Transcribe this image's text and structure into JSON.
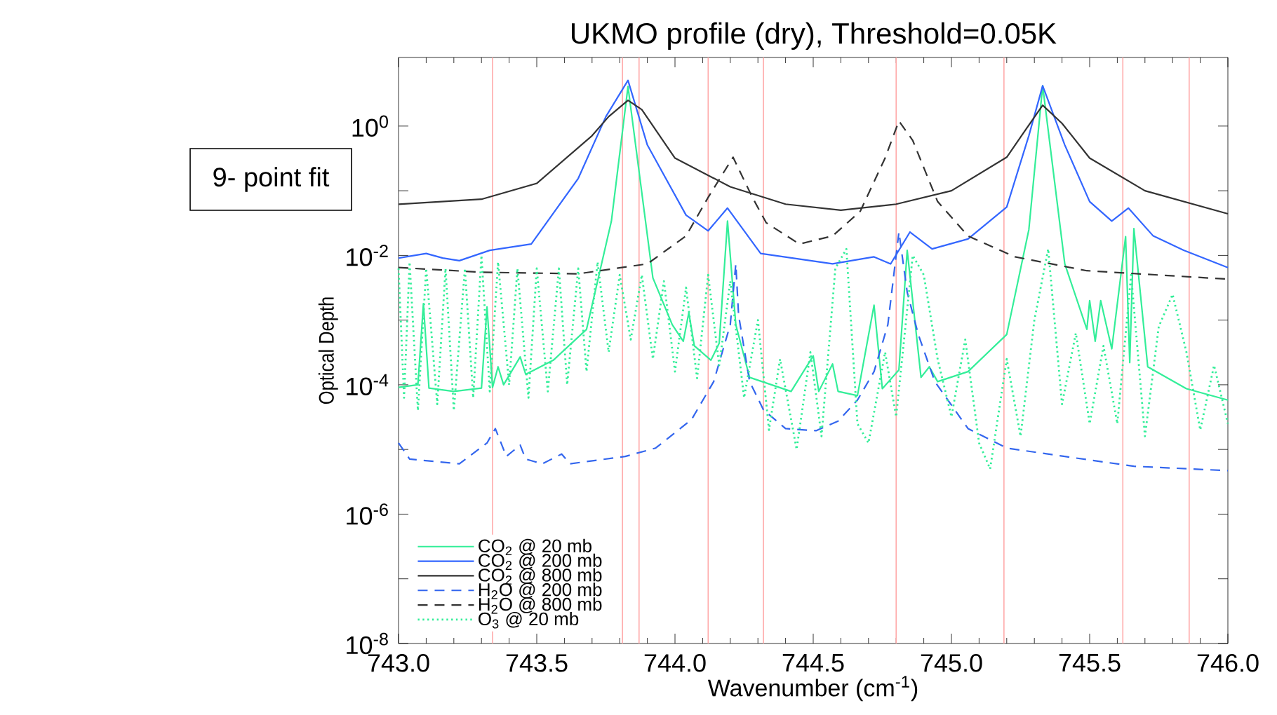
{
  "chart_data": {
    "type": "line",
    "title": "UKMO profile (dry), Threshold=0.05K",
    "xlabel": "Wavenumber (cm$^{-1}$)",
    "ylabel": "Optical Depth",
    "log": "y",
    "legend": "bottom left",
    "annotations": [
      "9- point fit"
    ],
    "xlim": [
      743.0,
      746.0
    ],
    "ylim": [
      1e-08,
      11.5
    ],
    "xticks": [
      {
        "value": 743.0,
        "label": "743.0"
      },
      {
        "value": 743.5,
        "label": "743.5"
      },
      {
        "value": 744.0,
        "label": "744.0"
      },
      {
        "value": 744.5,
        "label": "744.5"
      },
      {
        "value": 745.0,
        "label": "745.0"
      },
      {
        "value": 745.5,
        "label": "745.5"
      },
      {
        "value": 746.0,
        "label": "746.0"
      }
    ],
    "yticks": [
      {
        "value": 1e-08,
        "label": "10$^{-8}$"
      },
      {
        "value": 1e-07,
        "label": null
      },
      {
        "value": 1e-06,
        "label": "10$^{-6}$"
      },
      {
        "value": 1e-05,
        "label": null
      },
      {
        "value": 0.0001,
        "label": "10$^{-4}$"
      },
      {
        "value": 0.001,
        "label": null
      },
      {
        "value": 0.01,
        "label": "10$^{-2}$"
      },
      {
        "value": 0.1,
        "label": null
      },
      {
        "value": 1,
        "label": "10$^{0}$"
      }
    ],
    "ref_lines": [
      {
        "axis": "x",
        "value": 743.34,
        "color": "#ffaaaa"
      },
      {
        "axis": "x",
        "value": 743.81,
        "color": "#ffaaaa"
      },
      {
        "axis": "x",
        "value": 743.87,
        "color": "#ffaaaa"
      },
      {
        "axis": "x",
        "value": 744.12,
        "color": "#ffaaaa"
      },
      {
        "axis": "x",
        "value": 744.32,
        "color": "#ffaaaa"
      },
      {
        "axis": "x",
        "value": 744.8,
        "color": "#ffaaaa"
      },
      {
        "axis": "x",
        "value": 745.19,
        "color": "#ffaaaa"
      },
      {
        "axis": "x",
        "value": 745.62,
        "color": "#ffaaaa"
      },
      {
        "axis": "x",
        "value": 745.86,
        "color": "#ffaaaa"
      }
    ],
    "series": [
      {
        "name": "CO$_{2}$ @  20 mb",
        "color": "#33ee99",
        "line_style": "solid",
        "x": [
          743.0,
          743.07,
          743.09,
          743.11,
          743.2,
          743.3,
          743.32,
          743.34,
          743.36,
          743.38,
          743.44,
          743.46,
          743.56,
          743.68,
          743.77,
          743.83,
          743.92,
          743.99,
          744.03,
          744.05,
          744.07,
          744.13,
          744.16,
          744.19,
          744.22,
          744.27,
          744.42,
          744.5,
          744.52,
          744.57,
          744.59,
          744.66,
          744.72,
          744.75,
          744.81,
          744.84,
          744.89,
          744.92,
          744.95,
          745.06,
          745.2,
          745.28,
          745.33,
          745.41,
          745.49,
          745.5,
          745.52,
          745.54,
          745.58,
          745.63,
          745.645,
          745.66,
          745.71,
          745.85,
          746.0
        ],
        "values": [
          9.1e-05,
          0.0001,
          0.0018,
          8.9e-05,
          7.9e-05,
          8.9e-05,
          0.0016,
          9.1e-05,
          0.00019,
          0.0001,
          0.00027,
          0.000145,
          0.00024,
          0.00072,
          0.034,
          4.1,
          0.0045,
          0.00085,
          0.00047,
          0.0013,
          0.0004,
          0.00024,
          0.00044,
          0.034,
          0.00085,
          0.00013,
          7.9e-05,
          0.00028,
          7.9e-05,
          0.00021,
          7.9e-05,
          6.8e-05,
          0.0017,
          8.7e-05,
          0.00017,
          0.012,
          0.00013,
          0.00019,
          0.000112,
          0.00016,
          0.0006,
          0.025,
          4.2,
          0.0074,
          0.00072,
          0.002,
          0.00047,
          0.002,
          0.00036,
          0.0195,
          0.00022,
          0.026,
          0.00019,
          8.7e-05,
          5.8e-05
        ]
      },
      {
        "name": "CO$_{2}$ @ 200 mb",
        "color": "#3366ff",
        "line_style": "solid",
        "x": [
          743.0,
          743.1,
          743.16,
          743.22,
          743.33,
          743.48,
          743.65,
          743.75,
          743.83,
          743.9,
          744.04,
          744.12,
          744.19,
          744.31,
          744.57,
          744.72,
          744.78,
          744.85,
          744.93,
          745.06,
          745.2,
          745.28,
          745.33,
          745.41,
          745.5,
          745.58,
          745.64,
          745.73,
          745.84,
          746.0
        ],
        "values": [
          0.0091,
          0.0107,
          0.0091,
          0.0083,
          0.012,
          0.015,
          0.155,
          1.4,
          5.1,
          0.51,
          0.042,
          0.024,
          0.054,
          0.0107,
          0.0074,
          0.0095,
          0.0074,
          0.023,
          0.0126,
          0.018,
          0.056,
          0.71,
          4.2,
          0.51,
          0.068,
          0.034,
          0.054,
          0.02,
          0.012,
          0.0065
        ]
      },
      {
        "name": "CO$_{2}$ @ 800 mb",
        "color": "#333333",
        "line_style": "solid",
        "x": [
          743.0,
          743.3,
          743.5,
          743.7,
          743.76,
          743.83,
          743.88,
          744.0,
          744.2,
          744.4,
          744.6,
          744.8,
          745.0,
          745.2,
          745.26,
          745.33,
          745.4,
          745.5,
          745.7,
          746.0
        ],
        "values": [
          0.062,
          0.074,
          0.13,
          0.71,
          1.4,
          2.5,
          1.8,
          0.32,
          0.115,
          0.062,
          0.05,
          0.062,
          0.1,
          0.33,
          0.78,
          2.1,
          1.1,
          0.32,
          0.1,
          0.044
        ]
      },
      {
        "name": "H$_{2}$O @ 200 mb",
        "color": "#3366ee",
        "line_style": "dashed",
        "x": [
          743.0,
          743.04,
          743.22,
          743.32,
          743.35,
          743.39,
          743.44,
          743.46,
          743.52,
          743.59,
          743.62,
          743.82,
          743.93,
          744.06,
          744.14,
          744.2,
          744.22,
          744.23,
          744.27,
          744.32,
          744.4,
          744.51,
          744.59,
          744.66,
          744.72,
          744.77,
          744.81,
          744.84,
          744.88,
          744.94,
          745.06,
          745.2,
          745.41,
          745.66,
          746.0
        ],
        "values": [
          1.26e-05,
          7.1e-06,
          6e-06,
          1.26e-05,
          2.1e-05,
          7.8e-06,
          1.17e-05,
          7.1e-06,
          6e-06,
          8.5e-06,
          6e-06,
          7.8e-06,
          1.05e-05,
          2.9e-05,
          0.000112,
          0.00085,
          0.0074,
          0.0012,
          0.000112,
          4.1e-05,
          2.1e-05,
          1.95e-05,
          2.75e-05,
          5.8e-05,
          0.00016,
          0.00085,
          0.023,
          0.0027,
          0.0006,
          0.000112,
          2.1e-05,
          1.05e-05,
          7.8e-06,
          5.5e-06,
          4.7e-06
        ]
      },
      {
        "name": "H$_{2}$O @ 800 mb",
        "color": "#333333",
        "line_style": "dashed",
        "x": [
          743.0,
          743.3,
          743.65,
          743.9,
          744.04,
          744.12,
          744.21,
          744.28,
          744.33,
          744.45,
          744.57,
          744.67,
          744.76,
          744.81,
          744.86,
          744.95,
          745.06,
          745.23,
          745.49,
          746.0
        ],
        "values": [
          0.0065,
          0.0055,
          0.0052,
          0.0074,
          0.02,
          0.079,
          0.33,
          0.079,
          0.032,
          0.015,
          0.02,
          0.048,
          0.32,
          1.2,
          0.6,
          0.068,
          0.02,
          0.0095,
          0.0058,
          0.0043
        ]
      },
      {
        "name": "O$_{3}$  @  20 mb",
        "color": "#33ee99",
        "line_style": "dotted",
        "x": [
          743.0,
          743.02,
          743.04,
          743.07,
          743.1,
          743.14,
          743.17,
          743.2,
          743.24,
          743.27,
          743.3,
          743.33,
          743.36,
          743.4,
          743.43,
          743.47,
          743.5,
          743.54,
          743.58,
          743.61,
          743.65,
          743.68,
          743.72,
          743.76,
          743.8,
          743.84,
          743.88,
          743.92,
          743.96,
          744.0,
          744.04,
          744.08,
          744.12,
          744.16,
          744.2,
          744.25,
          744.3,
          744.34,
          744.38,
          744.44,
          744.49,
          744.53,
          744.58,
          744.62,
          744.66,
          744.7,
          744.76,
          744.8,
          744.86,
          744.9,
          744.95,
          745.0,
          745.05,
          745.1,
          745.14,
          745.2,
          745.25,
          745.3,
          745.35,
          745.4,
          745.45,
          745.5,
          745.55,
          745.6,
          745.65,
          745.7,
          745.75,
          745.8,
          745.85,
          745.9,
          745.95,
          746.0
        ],
        "values": [
          0.0063,
          6.3e-05,
          0.0079,
          4e-05,
          0.0063,
          5e-05,
          0.0063,
          4e-05,
          0.0063,
          6.3e-05,
          0.01,
          7.9e-05,
          0.0079,
          0.0001,
          0.0063,
          6.3e-05,
          0.0063,
          7.9e-05,
          0.0063,
          0.0001,
          0.0063,
          0.00016,
          0.0079,
          0.00032,
          0.005,
          0.0005,
          0.005,
          0.00025,
          0.004,
          0.00016,
          0.0032,
          0.000126,
          0.005,
          0.0002,
          0.004,
          6.3e-05,
          0.001,
          2e-05,
          0.00025,
          1e-05,
          0.00032,
          1.6e-05,
          0.0063,
          0.0126,
          2.5e-05,
          1.26e-05,
          0.00032,
          3.2e-05,
          0.01,
          0.005,
          0.00025,
          3.2e-05,
          0.0005,
          1.26e-05,
          5e-06,
          0.00025,
          1.6e-05,
          0.001,
          0.0126,
          5e-05,
          0.00063,
          2.5e-05,
          0.0004,
          2.5e-05,
          0.005,
          1.6e-05,
          0.00079,
          0.0025,
          0.00032,
          2e-05,
          0.0002,
          2.5e-05
        ]
      }
    ]
  }
}
